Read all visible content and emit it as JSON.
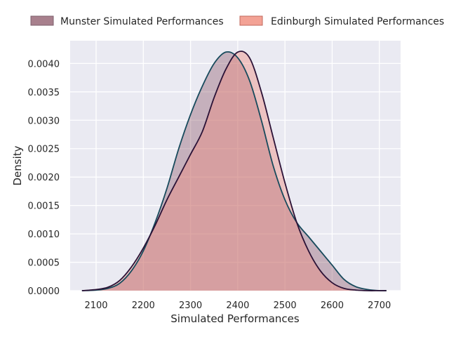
{
  "chart_data": {
    "type": "area",
    "xlabel": "Simulated Performances",
    "ylabel": "Density",
    "xlim": [
      2045,
      2745
    ],
    "ylim": [
      0,
      0.0044
    ],
    "xticks": [
      2100,
      2200,
      2300,
      2400,
      2500,
      2600,
      2700
    ],
    "yticks": [
      "0.0000",
      "0.0005",
      "0.0010",
      "0.0015",
      "0.0020",
      "0.0025",
      "0.0030",
      "0.0035",
      "0.0040"
    ],
    "grid": true,
    "legend_position": "top",
    "series": [
      {
        "name": "Munster Simulated Performances",
        "fill": "#8e5a6c",
        "line": "#174a5c",
        "x": [
          2070,
          2100,
          2125,
          2150,
          2175,
          2200,
          2225,
          2250,
          2275,
          2300,
          2325,
          2350,
          2375,
          2400,
          2425,
          2450,
          2475,
          2500,
          2525,
          2550,
          2575,
          2600,
          2625,
          2650,
          2675,
          2700,
          2715
        ],
        "y": [
          0.0,
          1e-05,
          4e-05,
          0.00013,
          0.00035,
          0.0007,
          0.0012,
          0.0018,
          0.0025,
          0.0031,
          0.0036,
          0.004,
          0.0042,
          0.0041,
          0.0037,
          0.003,
          0.0022,
          0.0016,
          0.0012,
          0.00095,
          0.0007,
          0.00045,
          0.0002,
          7e-05,
          2e-05,
          0.0,
          0.0
        ]
      },
      {
        "name": "Edinburgh Simulated Performances",
        "fill": "#f08878",
        "line": "#2b1236",
        "x": [
          2070,
          2100,
          2125,
          2150,
          2175,
          2200,
          2225,
          2250,
          2275,
          2300,
          2325,
          2350,
          2375,
          2400,
          2425,
          2450,
          2475,
          2500,
          2525,
          2550,
          2575,
          2600,
          2625,
          2650,
          2675,
          2700,
          2715
        ],
        "y": [
          0.0,
          2e-05,
          6e-05,
          0.00018,
          0.00042,
          0.00075,
          0.00115,
          0.0016,
          0.002,
          0.0024,
          0.0028,
          0.0034,
          0.0039,
          0.0042,
          0.0041,
          0.0035,
          0.0027,
          0.0019,
          0.0012,
          0.0007,
          0.00035,
          0.00014,
          4e-05,
          1e-05,
          0.0,
          0.0,
          0.0
        ]
      }
    ]
  }
}
